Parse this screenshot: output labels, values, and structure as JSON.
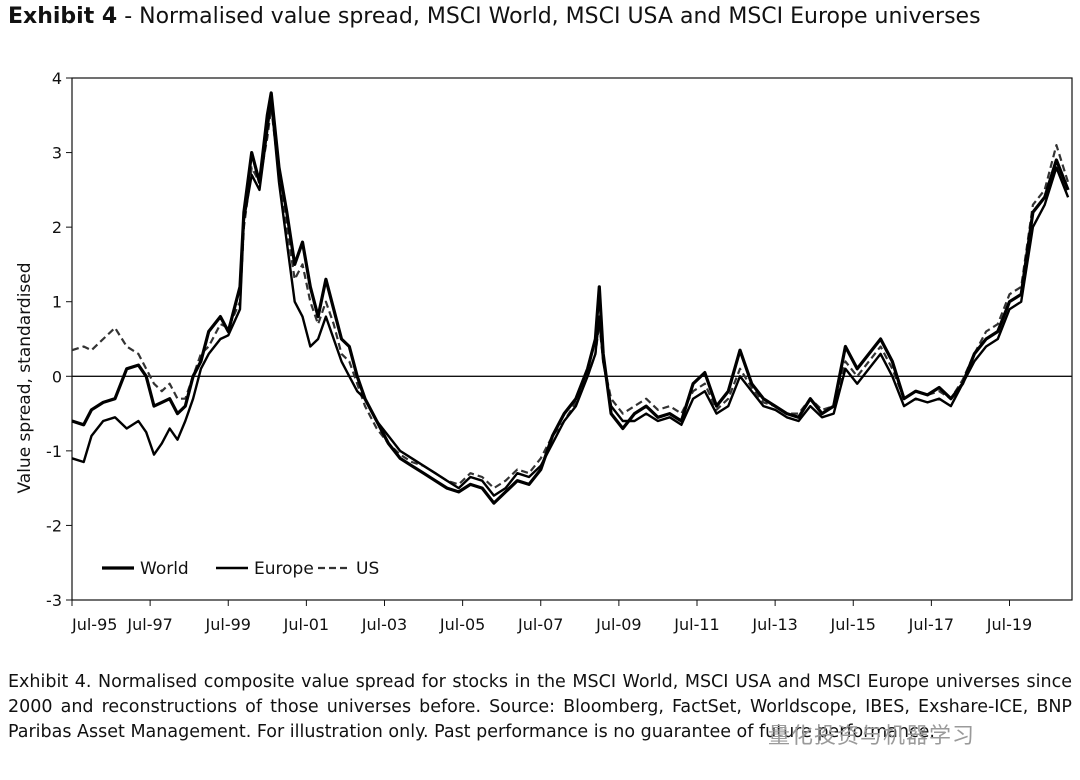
{
  "title": {
    "exhibit": "Exhibit 4",
    "text": " - Normalised value spread, MSCI World, MSCI USA and MSCI Europe universes"
  },
  "caption": "Exhibit 4. Normalised composite value spread for stocks in the MSCI World, MSCI USA and MSCI Europe universes since 2000 and reconstructions of those universes before. Source: Bloomberg, FactSet, Worldscope, IBES, Exshare-ICE, BNP Paribas Asset Management. For illustration only. Past performance is no guarantee of future performance.",
  "watermark": "量化投资与机器学习",
  "chart_data": {
    "type": "line",
    "title": "Normalised value spread, MSCI World, MSCI USA and MSCI Europe universes",
    "xlabel": "",
    "ylabel": "Value spread, standardised",
    "x_tick_labels": [
      "Jul-95",
      "Jul-97",
      "Jul-99",
      "Jul-01",
      "Jul-03",
      "Jul-05",
      "Jul-07",
      "Jul-09",
      "Jul-11",
      "Jul-13",
      "Jul-15",
      "Jul-17",
      "Jul-19"
    ],
    "y_ticks": [
      4,
      3,
      2,
      1,
      0,
      -1,
      -2,
      -3
    ],
    "ylim": [
      -3,
      4
    ],
    "xlim": [
      1995.5,
      2021.1
    ],
    "zero_line": true,
    "grid": false,
    "legend_position": "bottom-left",
    "series": [
      {
        "name": "World",
        "style": "solid-thick",
        "points": [
          [
            1995.5,
            -0.6
          ],
          [
            1995.8,
            -0.65
          ],
          [
            1996.0,
            -0.45
          ],
          [
            1996.3,
            -0.35
          ],
          [
            1996.6,
            -0.3
          ],
          [
            1996.9,
            0.1
          ],
          [
            1997.2,
            0.15
          ],
          [
            1997.4,
            0.0
          ],
          [
            1997.6,
            -0.4
          ],
          [
            1997.8,
            -0.35
          ],
          [
            1998.0,
            -0.3
          ],
          [
            1998.2,
            -0.5
          ],
          [
            1998.4,
            -0.4
          ],
          [
            1998.6,
            0.0
          ],
          [
            1998.8,
            0.2
          ],
          [
            1999.0,
            0.6
          ],
          [
            1999.3,
            0.8
          ],
          [
            1999.5,
            0.6
          ],
          [
            1999.8,
            1.2
          ],
          [
            1999.9,
            2.2
          ],
          [
            2000.1,
            3.0
          ],
          [
            2000.3,
            2.6
          ],
          [
            2000.5,
            3.5
          ],
          [
            2000.6,
            3.8
          ],
          [
            2000.8,
            2.8
          ],
          [
            2001.0,
            2.2
          ],
          [
            2001.2,
            1.5
          ],
          [
            2001.4,
            1.8
          ],
          [
            2001.6,
            1.2
          ],
          [
            2001.8,
            0.8
          ],
          [
            2002.0,
            1.3
          ],
          [
            2002.2,
            0.9
          ],
          [
            2002.4,
            0.5
          ],
          [
            2002.6,
            0.4
          ],
          [
            2002.8,
            0.0
          ],
          [
            2003.0,
            -0.3
          ],
          [
            2003.3,
            -0.6
          ],
          [
            2003.6,
            -0.9
          ],
          [
            2003.9,
            -1.1
          ],
          [
            2004.2,
            -1.2
          ],
          [
            2004.5,
            -1.3
          ],
          [
            2004.8,
            -1.4
          ],
          [
            2005.1,
            -1.5
          ],
          [
            2005.4,
            -1.55
          ],
          [
            2005.7,
            -1.45
          ],
          [
            2006.0,
            -1.5
          ],
          [
            2006.3,
            -1.7
          ],
          [
            2006.6,
            -1.55
          ],
          [
            2006.9,
            -1.4
          ],
          [
            2007.2,
            -1.45
          ],
          [
            2007.5,
            -1.25
          ],
          [
            2007.8,
            -0.8
          ],
          [
            2008.1,
            -0.5
          ],
          [
            2008.4,
            -0.3
          ],
          [
            2008.7,
            0.1
          ],
          [
            2008.9,
            0.5
          ],
          [
            2009.0,
            1.2
          ],
          [
            2009.1,
            0.3
          ],
          [
            2009.3,
            -0.5
          ],
          [
            2009.6,
            -0.7
          ],
          [
            2009.9,
            -0.5
          ],
          [
            2010.2,
            -0.4
          ],
          [
            2010.5,
            -0.55
          ],
          [
            2010.8,
            -0.5
          ],
          [
            2011.1,
            -0.6
          ],
          [
            2011.4,
            -0.1
          ],
          [
            2011.7,
            0.05
          ],
          [
            2012.0,
            -0.4
          ],
          [
            2012.3,
            -0.2
          ],
          [
            2012.6,
            0.35
          ],
          [
            2012.9,
            -0.1
          ],
          [
            2013.2,
            -0.3
          ],
          [
            2013.5,
            -0.4
          ],
          [
            2013.8,
            -0.5
          ],
          [
            2014.1,
            -0.55
          ],
          [
            2014.4,
            -0.3
          ],
          [
            2014.7,
            -0.5
          ],
          [
            2015.0,
            -0.4
          ],
          [
            2015.3,
            0.4
          ],
          [
            2015.6,
            0.1
          ],
          [
            2015.9,
            0.3
          ],
          [
            2016.2,
            0.5
          ],
          [
            2016.5,
            0.2
          ],
          [
            2016.8,
            -0.3
          ],
          [
            2017.1,
            -0.2
          ],
          [
            2017.4,
            -0.25
          ],
          [
            2017.7,
            -0.15
          ],
          [
            2018.0,
            -0.3
          ],
          [
            2018.3,
            -0.1
          ],
          [
            2018.6,
            0.3
          ],
          [
            2018.9,
            0.5
          ],
          [
            2019.2,
            0.6
          ],
          [
            2019.5,
            1.0
          ],
          [
            2019.8,
            1.1
          ],
          [
            2020.1,
            2.2
          ],
          [
            2020.4,
            2.4
          ],
          [
            2020.7,
            2.9
          ],
          [
            2021.0,
            2.5
          ]
        ]
      },
      {
        "name": "Europe",
        "style": "solid",
        "points": [
          [
            1995.5,
            -1.1
          ],
          [
            1995.8,
            -1.15
          ],
          [
            1996.0,
            -0.8
          ],
          [
            1996.3,
            -0.6
          ],
          [
            1996.6,
            -0.55
          ],
          [
            1996.9,
            -0.7
          ],
          [
            1997.2,
            -0.6
          ],
          [
            1997.4,
            -0.75
          ],
          [
            1997.6,
            -1.05
          ],
          [
            1997.8,
            -0.9
          ],
          [
            1998.0,
            -0.7
          ],
          [
            1998.2,
            -0.85
          ],
          [
            1998.4,
            -0.6
          ],
          [
            1998.6,
            -0.3
          ],
          [
            1998.8,
            0.1
          ],
          [
            1999.0,
            0.3
          ],
          [
            1999.3,
            0.5
          ],
          [
            1999.5,
            0.55
          ],
          [
            1999.8,
            0.9
          ],
          [
            1999.9,
            2.1
          ],
          [
            2000.1,
            2.7
          ],
          [
            2000.3,
            2.5
          ],
          [
            2000.5,
            3.3
          ],
          [
            2000.6,
            3.7
          ],
          [
            2000.8,
            2.6
          ],
          [
            2001.0,
            1.8
          ],
          [
            2001.2,
            1.0
          ],
          [
            2001.4,
            0.8
          ],
          [
            2001.6,
            0.4
          ],
          [
            2001.8,
            0.5
          ],
          [
            2002.0,
            0.8
          ],
          [
            2002.2,
            0.5
          ],
          [
            2002.4,
            0.2
          ],
          [
            2002.6,
            0.0
          ],
          [
            2002.8,
            -0.2
          ],
          [
            2003.0,
            -0.3
          ],
          [
            2003.3,
            -0.6
          ],
          [
            2003.6,
            -0.8
          ],
          [
            2003.9,
            -1.0
          ],
          [
            2004.2,
            -1.1
          ],
          [
            2004.5,
            -1.2
          ],
          [
            2004.8,
            -1.3
          ],
          [
            2005.1,
            -1.4
          ],
          [
            2005.4,
            -1.5
          ],
          [
            2005.7,
            -1.35
          ],
          [
            2006.0,
            -1.4
          ],
          [
            2006.3,
            -1.6
          ],
          [
            2006.6,
            -1.5
          ],
          [
            2006.9,
            -1.3
          ],
          [
            2007.2,
            -1.35
          ],
          [
            2007.5,
            -1.2
          ],
          [
            2007.8,
            -0.9
          ],
          [
            2008.1,
            -0.6
          ],
          [
            2008.4,
            -0.4
          ],
          [
            2008.7,
            0.0
          ],
          [
            2008.9,
            0.3
          ],
          [
            2009.0,
            0.8
          ],
          [
            2009.1,
            0.2
          ],
          [
            2009.3,
            -0.4
          ],
          [
            2009.6,
            -0.6
          ],
          [
            2009.9,
            -0.6
          ],
          [
            2010.2,
            -0.5
          ],
          [
            2010.5,
            -0.6
          ],
          [
            2010.8,
            -0.55
          ],
          [
            2011.1,
            -0.65
          ],
          [
            2011.4,
            -0.3
          ],
          [
            2011.7,
            -0.2
          ],
          [
            2012.0,
            -0.5
          ],
          [
            2012.3,
            -0.4
          ],
          [
            2012.6,
            0.0
          ],
          [
            2012.9,
            -0.2
          ],
          [
            2013.2,
            -0.4
          ],
          [
            2013.5,
            -0.45
          ],
          [
            2013.8,
            -0.55
          ],
          [
            2014.1,
            -0.6
          ],
          [
            2014.4,
            -0.4
          ],
          [
            2014.7,
            -0.55
          ],
          [
            2015.0,
            -0.5
          ],
          [
            2015.3,
            0.1
          ],
          [
            2015.6,
            -0.1
          ],
          [
            2015.9,
            0.1
          ],
          [
            2016.2,
            0.3
          ],
          [
            2016.5,
            0.0
          ],
          [
            2016.8,
            -0.4
          ],
          [
            2017.1,
            -0.3
          ],
          [
            2017.4,
            -0.35
          ],
          [
            2017.7,
            -0.3
          ],
          [
            2018.0,
            -0.4
          ],
          [
            2018.3,
            -0.1
          ],
          [
            2018.6,
            0.2
          ],
          [
            2018.9,
            0.4
          ],
          [
            2019.2,
            0.5
          ],
          [
            2019.5,
            0.9
          ],
          [
            2019.8,
            1.0
          ],
          [
            2020.1,
            2.0
          ],
          [
            2020.4,
            2.3
          ],
          [
            2020.7,
            2.8
          ],
          [
            2021.0,
            2.4
          ]
        ]
      },
      {
        "name": "US",
        "style": "dashed",
        "points": [
          [
            1995.5,
            0.35
          ],
          [
            1995.8,
            0.4
          ],
          [
            1996.0,
            0.35
          ],
          [
            1996.3,
            0.5
          ],
          [
            1996.6,
            0.65
          ],
          [
            1996.9,
            0.4
          ],
          [
            1997.2,
            0.3
          ],
          [
            1997.4,
            0.1
          ],
          [
            1997.6,
            -0.1
          ],
          [
            1997.8,
            -0.2
          ],
          [
            1998.0,
            -0.1
          ],
          [
            1998.2,
            -0.3
          ],
          [
            1998.4,
            -0.3
          ],
          [
            1998.6,
            0.0
          ],
          [
            1998.8,
            0.3
          ],
          [
            1999.0,
            0.4
          ],
          [
            1999.3,
            0.7
          ],
          [
            1999.5,
            0.65
          ],
          [
            1999.8,
            1.0
          ],
          [
            1999.9,
            2.0
          ],
          [
            2000.1,
            2.8
          ],
          [
            2000.3,
            2.6
          ],
          [
            2000.5,
            3.2
          ],
          [
            2000.6,
            3.6
          ],
          [
            2000.8,
            2.7
          ],
          [
            2001.0,
            2.0
          ],
          [
            2001.2,
            1.3
          ],
          [
            2001.4,
            1.5
          ],
          [
            2001.6,
            1.0
          ],
          [
            2001.8,
            0.7
          ],
          [
            2002.0,
            1.0
          ],
          [
            2002.2,
            0.7
          ],
          [
            2002.4,
            0.3
          ],
          [
            2002.6,
            0.2
          ],
          [
            2002.8,
            -0.1
          ],
          [
            2003.0,
            -0.4
          ],
          [
            2003.3,
            -0.7
          ],
          [
            2003.6,
            -0.9
          ],
          [
            2003.9,
            -1.05
          ],
          [
            2004.2,
            -1.15
          ],
          [
            2004.5,
            -1.2
          ],
          [
            2004.8,
            -1.3
          ],
          [
            2005.1,
            -1.4
          ],
          [
            2005.4,
            -1.45
          ],
          [
            2005.7,
            -1.3
          ],
          [
            2006.0,
            -1.35
          ],
          [
            2006.3,
            -1.5
          ],
          [
            2006.6,
            -1.4
          ],
          [
            2006.9,
            -1.25
          ],
          [
            2007.2,
            -1.3
          ],
          [
            2007.5,
            -1.1
          ],
          [
            2007.8,
            -0.8
          ],
          [
            2008.1,
            -0.6
          ],
          [
            2008.4,
            -0.35
          ],
          [
            2008.7,
            0.0
          ],
          [
            2008.9,
            0.3
          ],
          [
            2009.0,
            0.7
          ],
          [
            2009.1,
            0.2
          ],
          [
            2009.3,
            -0.3
          ],
          [
            2009.6,
            -0.5
          ],
          [
            2009.9,
            -0.4
          ],
          [
            2010.2,
            -0.3
          ],
          [
            2010.5,
            -0.45
          ],
          [
            2010.8,
            -0.4
          ],
          [
            2011.1,
            -0.5
          ],
          [
            2011.4,
            -0.2
          ],
          [
            2011.7,
            -0.1
          ],
          [
            2012.0,
            -0.45
          ],
          [
            2012.3,
            -0.3
          ],
          [
            2012.6,
            0.1
          ],
          [
            2012.9,
            -0.15
          ],
          [
            2013.2,
            -0.35
          ],
          [
            2013.5,
            -0.4
          ],
          [
            2013.8,
            -0.5
          ],
          [
            2014.1,
            -0.5
          ],
          [
            2014.4,
            -0.3
          ],
          [
            2014.7,
            -0.45
          ],
          [
            2015.0,
            -0.4
          ],
          [
            2015.3,
            0.2
          ],
          [
            2015.6,
            0.0
          ],
          [
            2015.9,
            0.2
          ],
          [
            2016.2,
            0.4
          ],
          [
            2016.5,
            0.1
          ],
          [
            2016.8,
            -0.3
          ],
          [
            2017.1,
            -0.2
          ],
          [
            2017.4,
            -0.25
          ],
          [
            2017.7,
            -0.2
          ],
          [
            2018.0,
            -0.3
          ],
          [
            2018.3,
            -0.05
          ],
          [
            2018.6,
            0.3
          ],
          [
            2018.9,
            0.6
          ],
          [
            2019.2,
            0.7
          ],
          [
            2019.5,
            1.1
          ],
          [
            2019.8,
            1.2
          ],
          [
            2020.1,
            2.3
          ],
          [
            2020.4,
            2.5
          ],
          [
            2020.7,
            3.1
          ],
          [
            2021.0,
            2.6
          ]
        ]
      }
    ]
  }
}
